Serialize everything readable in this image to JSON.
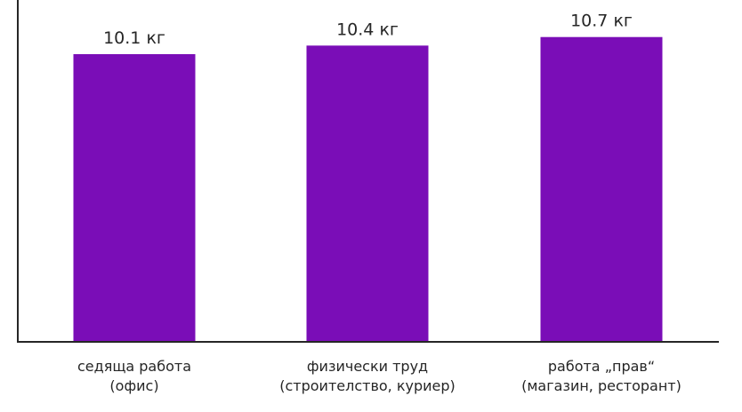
{
  "chart_data": {
    "type": "bar",
    "categories": [
      [
        "седяща работа",
        "(офис)"
      ],
      [
        "физически труд",
        "(строителство, куриер)"
      ],
      [
        "работа „прав“",
        "(магазин, ресторант)"
      ]
    ],
    "values": [
      10.1,
      10.4,
      10.7
    ],
    "value_labels": [
      "10.1 кг",
      "10.4 кг",
      "10.7 кг"
    ],
    "bar_color": "#7A0DB7",
    "ylim": [
      0,
      12
    ],
    "grid": false,
    "legend": "none",
    "title": "",
    "xlabel": "",
    "ylabel": ""
  }
}
